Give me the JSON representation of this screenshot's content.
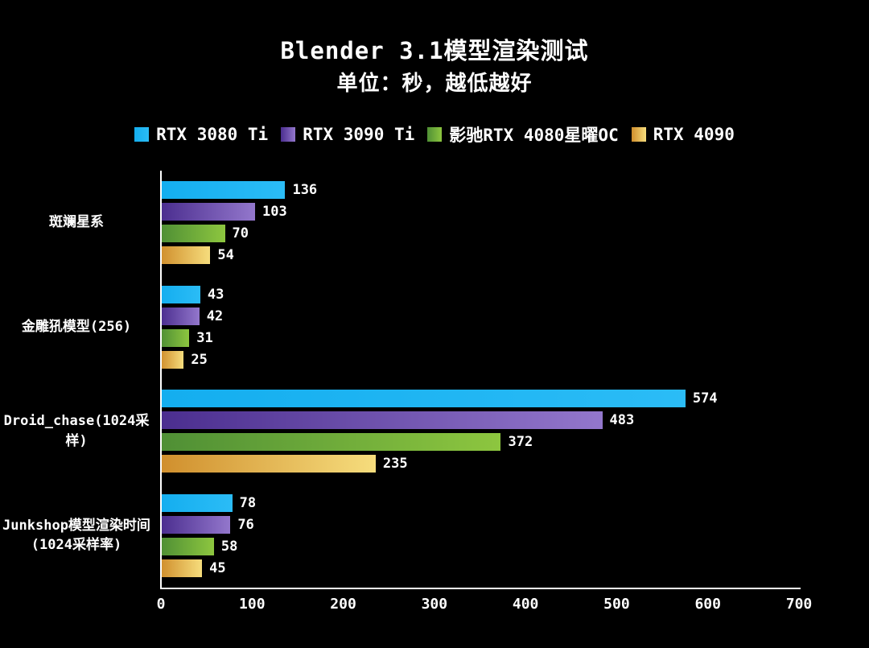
{
  "title": "Blender 3.1模型渲染测试",
  "subtitle": "单位：秒，越低越好",
  "chart_data": {
    "type": "bar",
    "orientation": "horizontal",
    "title": "Blender 3.1模型渲染测试",
    "subtitle": "单位：秒，越低越好",
    "unit": "秒",
    "note": "越低越好",
    "legend_position": "top",
    "grid": false,
    "background": "#000000",
    "text_color": "#ffffff",
    "xlim": [
      0,
      700
    ],
    "x_ticks": [
      "0",
      "100",
      "200",
      "300",
      "400",
      "500",
      "600",
      "700"
    ],
    "categories": [
      "斑斓星系",
      "金雕犼模型(256)",
      "Droid_chase(1024采样)",
      "Junkshop模型渲染时间(1024采样率)"
    ],
    "series": [
      {
        "name": "RTX 3080 Ti",
        "color": "#14aeef",
        "color2": "#2bbcf6",
        "values": [
          136,
          43,
          574,
          78
        ]
      },
      {
        "name": "RTX 3090 Ti",
        "color": "#4b2e8f",
        "color2": "#9377cc",
        "values": [
          103,
          42,
          483,
          76
        ]
      },
      {
        "name": "影驰RTX 4080星曜OC",
        "color": "#4f8f35",
        "color2": "#8dc63f",
        "values": [
          70,
          31,
          372,
          58
        ]
      },
      {
        "name": "RTX 4090",
        "color": "#d08f2d",
        "color2": "#f6dd7d",
        "values": [
          54,
          25,
          235,
          45
        ]
      }
    ]
  }
}
